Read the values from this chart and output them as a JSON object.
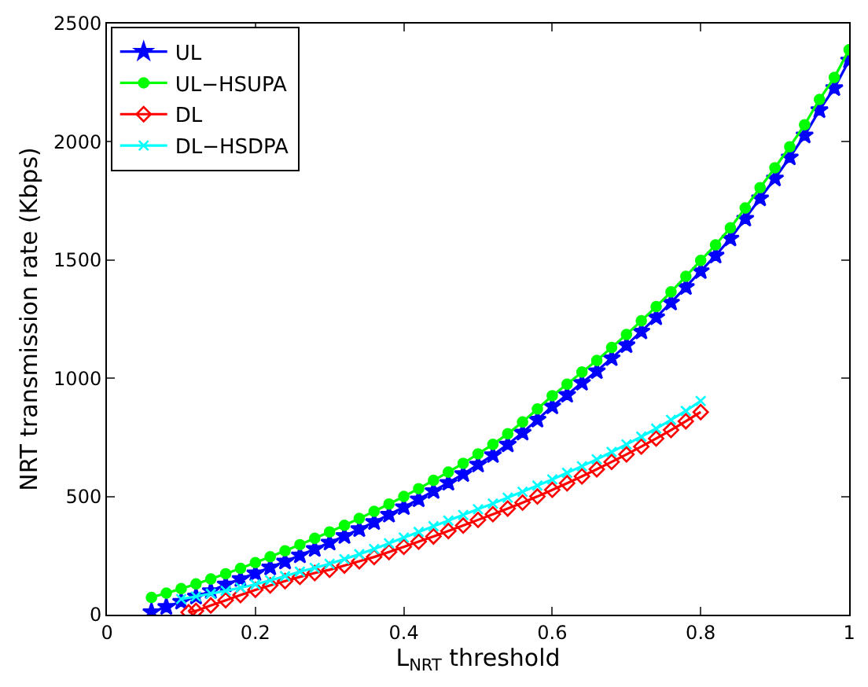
{
  "chart_data": {
    "type": "line",
    "xlabel": "L$_{NRT}$ threshold",
    "ylabel": "NRT transmission rate (Kbps)",
    "xlim": [
      0,
      1
    ],
    "xticks": [
      0,
      0.2,
      0.4,
      0.6,
      0.8,
      1
    ],
    "ylim": [
      0,
      2500
    ],
    "yticks": [
      0,
      500,
      1000,
      1500,
      2000,
      2500
    ],
    "legend": "top left",
    "line_style": "solid",
    "series": [
      {
        "name": "UL",
        "color": "#0000ff",
        "marker": "star",
        "x": [
          0.06,
          0.08,
          0.1,
          0.12,
          0.14,
          0.16,
          0.18,
          0.2,
          0.22,
          0.24,
          0.26,
          0.28,
          0.3,
          0.32,
          0.34,
          0.36,
          0.38,
          0.4,
          0.42,
          0.44,
          0.46,
          0.48,
          0.5,
          0.52,
          0.54,
          0.56,
          0.58,
          0.6,
          0.62,
          0.64,
          0.66,
          0.68,
          0.7,
          0.72,
          0.74,
          0.76,
          0.78,
          0.8,
          0.82,
          0.84,
          0.86,
          0.88,
          0.9,
          0.92,
          0.94,
          0.96,
          0.98,
          1.0
        ],
        "values": [
          11,
          33,
          55,
          77,
          100,
          128,
          151,
          175,
          200,
          225,
          251,
          278,
          305,
          333,
          362,
          392,
          423,
          455,
          488,
          523,
          558,
          595,
          635,
          675,
          720,
          770,
          825,
          881,
          930,
          981,
          1030,
          1085,
          1140,
          1198,
          1258,
          1320,
          1386,
          1453,
          1519,
          1591,
          1675,
          1761,
          1845,
          1934,
          2027,
          2134,
          2227,
          2344
        ]
      },
      {
        "name": "UL−HSUPA",
        "color": "#00ff00",
        "marker": "circle",
        "x": [
          0.06,
          0.08,
          0.1,
          0.12,
          0.14,
          0.16,
          0.18,
          0.2,
          0.22,
          0.24,
          0.26,
          0.28,
          0.3,
          0.32,
          0.34,
          0.36,
          0.38,
          0.4,
          0.42,
          0.44,
          0.46,
          0.48,
          0.5,
          0.52,
          0.54,
          0.56,
          0.58,
          0.6,
          0.62,
          0.64,
          0.66,
          0.68,
          0.7,
          0.72,
          0.74,
          0.76,
          0.78,
          0.8,
          0.82,
          0.84,
          0.86,
          0.88,
          0.9,
          0.92,
          0.94,
          0.96,
          0.98,
          1.0
        ],
        "values": [
          73,
          91,
          110,
          130,
          151,
          173,
          196,
          220,
          245,
          270,
          296,
          323,
          350,
          378,
          407,
          437,
          468,
          500,
          533,
          568,
          603,
          640,
          680,
          720,
          765,
          815,
          870,
          926,
          975,
          1026,
          1075,
          1130,
          1185,
          1243,
          1303,
          1365,
          1431,
          1498,
          1564,
          1636,
          1720,
          1806,
          1890,
          1979,
          2072,
          2179,
          2272,
          2389
        ]
      },
      {
        "name": "DL",
        "color": "#ff0000",
        "marker": "diamond",
        "x": [
          0.11,
          0.12,
          0.14,
          0.16,
          0.18,
          0.2,
          0.22,
          0.24,
          0.26,
          0.28,
          0.3,
          0.32,
          0.34,
          0.36,
          0.38,
          0.4,
          0.42,
          0.44,
          0.46,
          0.48,
          0.5,
          0.52,
          0.54,
          0.56,
          0.58,
          0.6,
          0.62,
          0.64,
          0.66,
          0.68,
          0.7,
          0.72,
          0.74,
          0.76,
          0.78,
          0.8
        ],
        "values": [
          10,
          16,
          39,
          61,
          83,
          105,
          124,
          142,
          160,
          176,
          190,
          208,
          226,
          244,
          265,
          287,
          309,
          331,
          354,
          377,
          401,
          425,
          449,
          474,
          500,
          528,
          556,
          585,
          615,
          646,
          678,
          711,
          745,
          781,
          818,
          857
        ]
      },
      {
        "name": "DL−HSDPA",
        "color": "#00ffff",
        "marker": "cross",
        "x": [
          0.1,
          0.12,
          0.14,
          0.16,
          0.18,
          0.2,
          0.22,
          0.24,
          0.26,
          0.28,
          0.3,
          0.32,
          0.34,
          0.36,
          0.38,
          0.4,
          0.42,
          0.44,
          0.46,
          0.48,
          0.5,
          0.52,
          0.54,
          0.56,
          0.58,
          0.6,
          0.62,
          0.64,
          0.66,
          0.68,
          0.7,
          0.72,
          0.74,
          0.76,
          0.78,
          0.8
        ],
        "values": [
          66,
          77,
          89,
          101,
          114,
          128,
          145,
          163,
          182,
          198,
          215,
          235,
          256,
          278,
          302,
          326,
          350,
          374,
          398,
          422,
          446,
          470,
          495,
          520,
          546,
          572,
          600,
          628,
          657,
          688,
          720,
          753,
          787,
          824,
          862,
          904
        ]
      }
    ]
  }
}
